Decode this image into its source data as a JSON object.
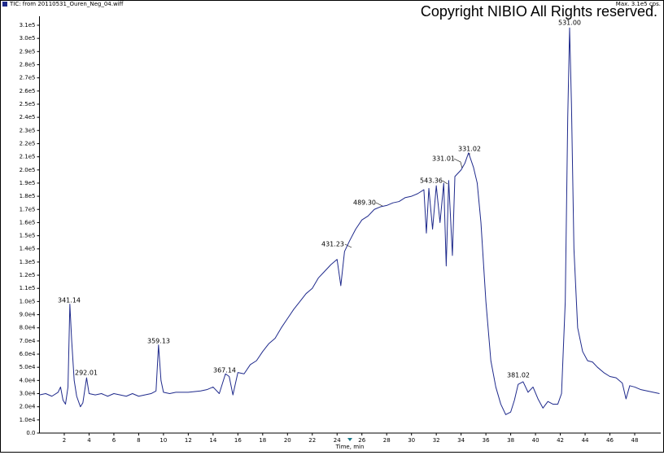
{
  "chart_data": {
    "type": "line",
    "title": "TIC: from 20110531_Ouren_Neg_04.wiff",
    "subtitle": "Max. 3.1e5 cps.",
    "copyright": "Copyright NIBIO All Rights reserved.",
    "x_label": "Time, min",
    "annotations": [
      "341.14",
      "292.01",
      "359.13",
      "367.14",
      "431.23",
      "489.30",
      "543.36",
      "331.01",
      "331.02",
      "381.02",
      "531.00"
    ],
    "xlim": [
      0,
      50.1
    ],
    "ylim": [
      0,
      310000
    ],
    "xticks": [
      2,
      4,
      6,
      8,
      10,
      12,
      14,
      16,
      18,
      20,
      22,
      24,
      26,
      28,
      30,
      32,
      34,
      36,
      38,
      40,
      42,
      44,
      46,
      48
    ],
    "yticks": [
      {
        "value": 0,
        "label": "0.0"
      },
      {
        "value": 10000,
        "label": "1.0e4"
      },
      {
        "value": 20000,
        "label": "2.0e4"
      },
      {
        "value": 30000,
        "label": "3.0e4"
      },
      {
        "value": 40000,
        "label": "4.0e4"
      },
      {
        "value": 50000,
        "label": "5.0e4"
      },
      {
        "value": 60000,
        "label": "6.0e4"
      },
      {
        "value": 70000,
        "label": "7.0e4"
      },
      {
        "value": 80000,
        "label": "8.0e4"
      },
      {
        "value": 90000,
        "label": "9.0e4"
      },
      {
        "value": 100000,
        "label": "1.0e5"
      },
      {
        "value": 110000,
        "label": "1.1e5"
      },
      {
        "value": 120000,
        "label": "1.2e5"
      },
      {
        "value": 130000,
        "label": "1.3e5"
      },
      {
        "value": 140000,
        "label": "1.4e5"
      },
      {
        "value": 150000,
        "label": "1.5e5"
      },
      {
        "value": 160000,
        "label": "1.6e5"
      },
      {
        "value": 170000,
        "label": "1.7e5"
      },
      {
        "value": 180000,
        "label": "1.8e5"
      },
      {
        "value": 190000,
        "label": "1.9e5"
      },
      {
        "value": 200000,
        "label": "2.0e5"
      },
      {
        "value": 210000,
        "label": "2.1e5"
      },
      {
        "value": 220000,
        "label": "2.2e5"
      },
      {
        "value": 230000,
        "label": "2.3e5"
      },
      {
        "value": 240000,
        "label": "2.4e5"
      },
      {
        "value": 250000,
        "label": "2.5e5"
      },
      {
        "value": 260000,
        "label": "2.6e5"
      },
      {
        "value": 270000,
        "label": "2.7e5"
      },
      {
        "value": 280000,
        "label": "2.8e5"
      },
      {
        "value": 290000,
        "label": "2.9e5"
      },
      {
        "value": 300000,
        "label": "3.0e5"
      },
      {
        "value": 310000,
        "label": "3.1e5"
      }
    ],
    "x": [
      0,
      0.5,
      1,
      1.5,
      1.7,
      1.9,
      2.1,
      2.3,
      2.45,
      2.6,
      2.8,
      3.0,
      3.3,
      3.5,
      3.8,
      4.0,
      4.5,
      5,
      5.5,
      6,
      6.5,
      7,
      7.5,
      8,
      8.5,
      9,
      9.4,
      9.6,
      9.8,
      10.0,
      10.5,
      11,
      12,
      13,
      13.5,
      14,
      14.5,
      15,
      15.3,
      15.6,
      16,
      16.5,
      17,
      17.5,
      18,
      18.5,
      19,
      19.5,
      20,
      20.5,
      21,
      21.5,
      22,
      22.5,
      23,
      23.5,
      24,
      24.3,
      24.6,
      25,
      25.5,
      26,
      26.5,
      27,
      27.5,
      28,
      28.5,
      29,
      29.5,
      30,
      30.5,
      31,
      31.2,
      31.4,
      31.7,
      32,
      32.3,
      32.6,
      32.8,
      33,
      33.3,
      33.5,
      34,
      34.3,
      34.6,
      35,
      35.3,
      35.6,
      36,
      36.4,
      36.8,
      37.2,
      37.6,
      38,
      38.3,
      38.6,
      39,
      39.4,
      39.8,
      40.2,
      40.6,
      41,
      41.4,
      41.8,
      42.1,
      42.4,
      42.6,
      42.75,
      42.9,
      43.1,
      43.4,
      43.8,
      44.2,
      44.6,
      45,
      45.5,
      46,
      46.5,
      47,
      47.3,
      47.6,
      48,
      48.5,
      49,
      49.5,
      50
    ],
    "series": [
      {
        "name": "TIC",
        "color": "#1f2a8c",
        "values": [
          29000,
          30000,
          28000,
          31000,
          35000,
          25000,
          22000,
          35000,
          98000,
          70000,
          40000,
          28000,
          20000,
          23000,
          42000,
          30000,
          29000,
          30000,
          28000,
          30000,
          29000,
          28000,
          30000,
          28000,
          29000,
          30000,
          32000,
          67000,
          40000,
          31000,
          30000,
          31000,
          31000,
          32000,
          33000,
          35000,
          30000,
          45000,
          43000,
          29000,
          46000,
          45000,
          52000,
          55000,
          62000,
          68000,
          72000,
          80000,
          87000,
          94000,
          100000,
          106000,
          110000,
          118000,
          123000,
          128000,
          132000,
          112000,
          138000,
          146000,
          155000,
          162000,
          165000,
          170000,
          172000,
          173000,
          175000,
          176000,
          179000,
          180000,
          182000,
          185000,
          152000,
          186000,
          155000,
          188000,
          160000,
          190000,
          127000,
          192000,
          135000,
          195000,
          200000,
          205000,
          213000,
          202000,
          190000,
          160000,
          100000,
          55000,
          35000,
          22000,
          14000,
          16000,
          25000,
          37000,
          39000,
          31000,
          35000,
          26000,
          19000,
          24000,
          22000,
          22000,
          30000,
          100000,
          240000,
          308000,
          250000,
          140000,
          80000,
          62000,
          55000,
          54000,
          50000,
          46000,
          43000,
          42000,
          38000,
          26000,
          36000,
          35000,
          33000,
          32000,
          31000,
          30000
        ]
      }
    ]
  }
}
